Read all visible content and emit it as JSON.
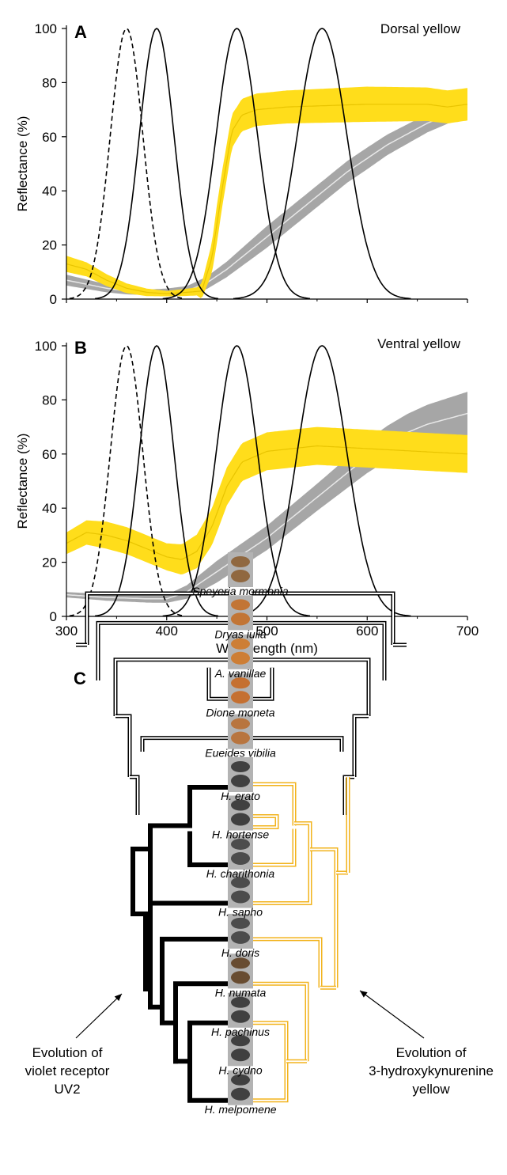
{
  "panels": [
    {
      "letter": "A",
      "label": "Dorsal yellow",
      "ylabel": "Reflectance (%)",
      "yticks": [
        "0",
        "20",
        "40",
        "60",
        "80",
        "100"
      ],
      "yellow_mean": [
        [
          300,
          13
        ],
        [
          320,
          11
        ],
        [
          340,
          7
        ],
        [
          360,
          4
        ],
        [
          380,
          2.5
        ],
        [
          400,
          2
        ],
        [
          420,
          2.5
        ],
        [
          435,
          3
        ],
        [
          445,
          15
        ],
        [
          455,
          40
        ],
        [
          465,
          62
        ],
        [
          475,
          68
        ],
        [
          490,
          70
        ],
        [
          520,
          71
        ],
        [
          560,
          71.5
        ],
        [
          600,
          72
        ],
        [
          640,
          72
        ],
        [
          660,
          72
        ],
        [
          680,
          71
        ],
        [
          700,
          72
        ]
      ],
      "yellow_halfwidth": [
        [
          300,
          3
        ],
        [
          350,
          2
        ],
        [
          400,
          1
        ],
        [
          430,
          1.5
        ],
        [
          450,
          7
        ],
        [
          470,
          6
        ],
        [
          500,
          6
        ],
        [
          600,
          6.5
        ],
        [
          700,
          6
        ]
      ],
      "gray_mean": [
        [
          300,
          7
        ],
        [
          320,
          5.5
        ],
        [
          340,
          4
        ],
        [
          360,
          3
        ],
        [
          380,
          2.5
        ],
        [
          400,
          2.5
        ],
        [
          420,
          3
        ],
        [
          440,
          6
        ],
        [
          460,
          11
        ],
        [
          480,
          17
        ],
        [
          500,
          23
        ],
        [
          520,
          29
        ],
        [
          540,
          35
        ],
        [
          560,
          41
        ],
        [
          580,
          47
        ],
        [
          600,
          52
        ],
        [
          620,
          57
        ],
        [
          640,
          61
        ],
        [
          660,
          65
        ],
        [
          680,
          68
        ],
        [
          700,
          71
        ]
      ],
      "gray_halfwidth": [
        [
          300,
          2
        ],
        [
          380,
          1
        ],
        [
          430,
          2
        ],
        [
          500,
          4
        ],
        [
          600,
          4
        ],
        [
          700,
          3
        ]
      ]
    },
    {
      "letter": "B",
      "label": "Ventral yellow",
      "ylabel": "Reflectance (%)",
      "yticks": [
        "0",
        "20",
        "40",
        "60",
        "80",
        "100"
      ],
      "yellow_mean": [
        [
          300,
          27
        ],
        [
          320,
          31
        ],
        [
          340,
          30
        ],
        [
          360,
          28
        ],
        [
          380,
          25
        ],
        [
          400,
          22
        ],
        [
          415,
          21
        ],
        [
          430,
          24
        ],
        [
          445,
          33
        ],
        [
          460,
          48
        ],
        [
          475,
          57
        ],
        [
          500,
          61
        ],
        [
          550,
          63
        ],
        [
          600,
          62
        ],
        [
          650,
          61
        ],
        [
          700,
          60
        ]
      ],
      "yellow_halfwidth": [
        [
          300,
          4
        ],
        [
          340,
          5
        ],
        [
          400,
          5
        ],
        [
          450,
          7
        ],
        [
          500,
          7
        ],
        [
          600,
          7
        ],
        [
          700,
          7
        ]
      ],
      "gray_mean": [
        [
          300,
          8
        ],
        [
          340,
          7
        ],
        [
          380,
          6.5
        ],
        [
          400,
          6.5
        ],
        [
          420,
          9
        ],
        [
          440,
          14
        ],
        [
          460,
          19
        ],
        [
          480,
          24
        ],
        [
          500,
          29
        ],
        [
          520,
          35
        ],
        [
          540,
          41
        ],
        [
          560,
          47
        ],
        [
          580,
          53
        ],
        [
          600,
          59
        ],
        [
          620,
          64
        ],
        [
          640,
          68
        ],
        [
          660,
          71
        ],
        [
          680,
          73
        ],
        [
          700,
          75
        ]
      ],
      "gray_halfwidth": [
        [
          300,
          1
        ],
        [
          400,
          1.5
        ],
        [
          450,
          4
        ],
        [
          550,
          5
        ],
        [
          650,
          7
        ],
        [
          700,
          8
        ]
      ]
    }
  ],
  "chart_data": {
    "type": "line",
    "xlabel": "Wavelength (nm)",
    "ylabel": "Reflectance (%)",
    "xlim": [
      300,
      700
    ],
    "ylim": [
      0,
      100
    ],
    "xticks": [
      "300",
      "400",
      "500",
      "600",
      "700"
    ],
    "receptor_sensitivity_curves": [
      {
        "lambda_max": 360,
        "style": "dashed"
      },
      {
        "lambda_max": 390,
        "style": "solid"
      },
      {
        "lambda_max": 470,
        "style": "solid"
      },
      {
        "lambda_max": 555,
        "style": "solid"
      }
    ],
    "series": [
      {
        "panel": "A",
        "color": "yellow"
      },
      {
        "panel": "A",
        "color": "gray"
      },
      {
        "panel": "B",
        "color": "yellow"
      },
      {
        "panel": "B",
        "color": "gray"
      }
    ]
  },
  "phylogeny": {
    "letter": "C",
    "taxa": [
      "Speyeria mormonia",
      "Dryas iulia",
      "A. vanillae",
      "Dione moneta",
      "Eueides vibilia",
      "H. erato",
      "H. hortense",
      "H. charithonia",
      "H. sapho",
      "H. doris",
      "H. numata",
      "H. pachinus",
      "H. cydno",
      "H. melpomene"
    ],
    "left_annotation": [
      "Evolution of",
      "violet receptor",
      "UV2"
    ],
    "right_annotation": [
      "Evolution of",
      "3-hydroxykynurenine",
      "yellow"
    ]
  },
  "colors": {
    "yellow": "#FFDD1B",
    "gray": "#A6A6A6",
    "orange_clade": "#F2B31C",
    "black": "#000000"
  }
}
